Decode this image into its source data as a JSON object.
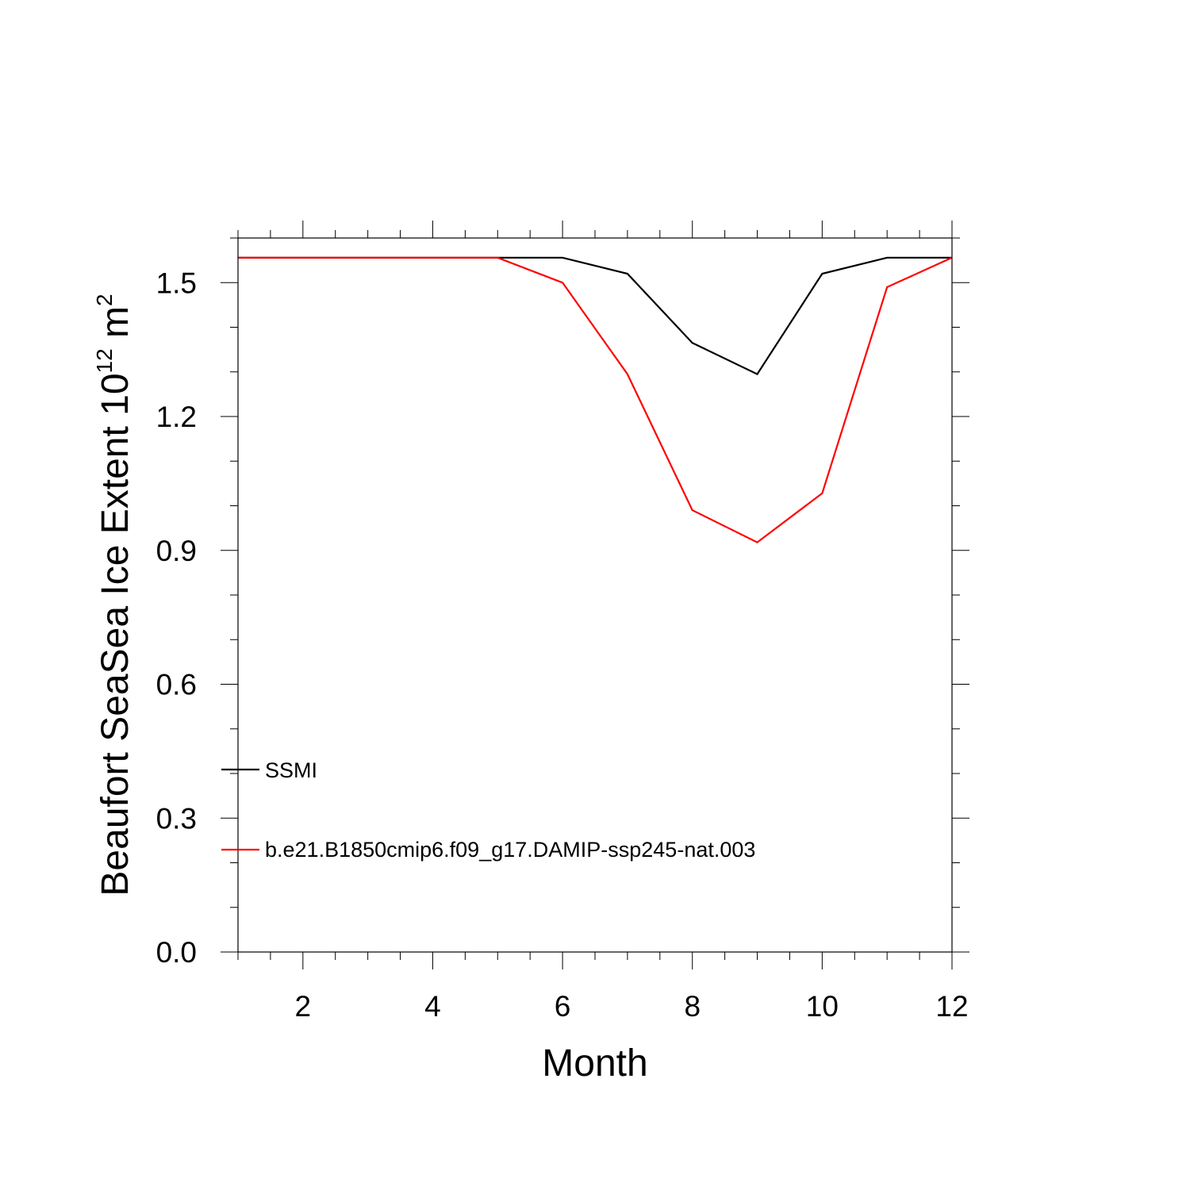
{
  "chart_data": {
    "type": "line",
    "xlabel": "Month",
    "ylabel": {
      "text": "Beaufort SeaSea Ice Extent 10",
      "superscript1": "12",
      "unit": " m",
      "superscript2": "2"
    },
    "xlim": [
      1,
      12
    ],
    "ylim": [
      0.0,
      1.6
    ],
    "x_ticks": [
      2,
      4,
      6,
      8,
      10,
      12
    ],
    "x_tick_labels": [
      "2",
      "4",
      "6",
      "8",
      "10",
      "12"
    ],
    "x_minor_step": 0.5,
    "y_ticks": [
      0.0,
      0.3,
      0.6,
      0.9,
      1.2,
      1.5
    ],
    "y_tick_labels": [
      "0.0",
      "0.3",
      "0.6",
      "0.9",
      "1.2",
      "1.5"
    ],
    "y_minor_step": 0.1,
    "grid": false,
    "legend_position": "lower-left",
    "x": [
      1,
      2,
      3,
      4,
      5,
      6,
      7,
      8,
      9,
      10,
      11,
      12
    ],
    "series": [
      {
        "name": "SSMI",
        "color": "#000000",
        "values": [
          1.556,
          1.556,
          1.556,
          1.556,
          1.556,
          1.556,
          1.52,
          1.365,
          1.295,
          1.52,
          1.556,
          1.556
        ]
      },
      {
        "name": "b.e21.B1850cmip6.f09_g17.DAMIP-ssp245-nat.003",
        "color": "#ff0000",
        "values": [
          1.556,
          1.556,
          1.556,
          1.556,
          1.556,
          1.5,
          1.295,
          0.99,
          0.918,
          1.028,
          1.49,
          1.556
        ]
      }
    ]
  }
}
